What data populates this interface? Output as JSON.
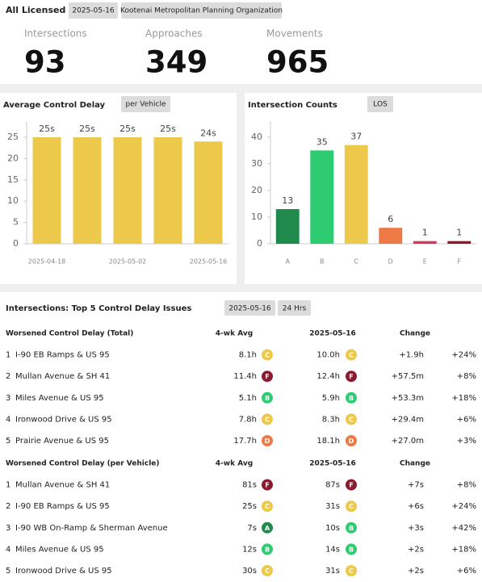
{
  "header": {
    "title": "All Licensed",
    "date": "2025-05-16",
    "agency": "Kootenai Metropolitan Planning Organization"
  },
  "kpis": [
    {
      "label": "Intersections",
      "value": 93
    },
    {
      "label": "Approaches",
      "value": 349
    },
    {
      "label": "Movements",
      "value": 965
    }
  ],
  "chart_data": [
    {
      "type": "bar",
      "title": "Average Control Delay",
      "badge": "per Vehicle",
      "categories": [
        "2025-04-18",
        null,
        "2025-05-02",
        null,
        "2025-05-16"
      ],
      "values": [
        25,
        25,
        25,
        25,
        24
      ],
      "value_labels": [
        "25s",
        "25s",
        "25s",
        "25s",
        "24s"
      ],
      "color": "#ecc94b",
      "ylim": [
        0,
        28.8
      ],
      "yticks": [
        0,
        5,
        10,
        15,
        20,
        25
      ]
    },
    {
      "type": "bar",
      "title": "Intersection Counts",
      "badge": "LOS",
      "categories": [
        "A",
        "B",
        "C",
        "D",
        "E",
        "F"
      ],
      "values": [
        13,
        35,
        37,
        6,
        1,
        1
      ],
      "colors": [
        "#1f8a4c",
        "#2ecc71",
        "#ecc94b",
        "#ed7a45",
        "#d8385b",
        "#8b1c2f"
      ],
      "ylim": [
        0,
        46
      ],
      "yticks": [
        0,
        10,
        20,
        30,
        40
      ]
    }
  ],
  "table": {
    "title": "Intersections: Top 5 Control Delay Issues",
    "badges": [
      "2025-05-16",
      "24 Hrs"
    ],
    "sections": [
      {
        "title": "Worsened Control Delay (Total)",
        "columns": [
          "4-wk Avg",
          "2025-05-16",
          "Change"
        ],
        "rows": [
          {
            "rank": 1,
            "name": "I-90 EB Ramps & US 95",
            "avg": "8.1h",
            "avg_los": "C",
            "current": "10.0h",
            "current_los": "C",
            "change": "+1.9h",
            "pct": "+24%"
          },
          {
            "rank": 2,
            "name": "Mullan Avenue & SH 41",
            "avg": "11.4h",
            "avg_los": "F",
            "current": "12.4h",
            "current_los": "F",
            "change": "+57.5m",
            "pct": "+8%"
          },
          {
            "rank": 3,
            "name": "Miles Avenue & US 95",
            "avg": "5.1h",
            "avg_los": "B",
            "current": "5.9h",
            "current_los": "B",
            "change": "+53.3m",
            "pct": "+18%"
          },
          {
            "rank": 4,
            "name": "Ironwood Drive & US 95",
            "avg": "7.8h",
            "avg_los": "C",
            "current": "8.3h",
            "current_los": "C",
            "change": "+29.4m",
            "pct": "+6%"
          },
          {
            "rank": 5,
            "name": "Prairie Avenue & US 95",
            "avg": "17.7h",
            "avg_los": "D",
            "current": "18.1h",
            "current_los": "D",
            "change": "+27.0m",
            "pct": "+3%"
          }
        ]
      },
      {
        "title": "Worsened Control Delay (per Vehicle)",
        "columns": [
          "4-wk Avg",
          "2025-05-16",
          "Change"
        ],
        "rows": [
          {
            "rank": 1,
            "name": "Mullan Avenue & SH 41",
            "avg": "81s",
            "avg_los": "F",
            "current": "87s",
            "current_los": "F",
            "change": "+7s",
            "pct": "+8%"
          },
          {
            "rank": 2,
            "name": "I-90 EB Ramps & US 95",
            "avg": "25s",
            "avg_los": "C",
            "current": "31s",
            "current_los": "C",
            "change": "+6s",
            "pct": "+24%"
          },
          {
            "rank": 3,
            "name": "I-90 WB On-Ramp & Sherman Avenue",
            "avg": "7s",
            "avg_los": "A",
            "current": "10s",
            "current_los": "B",
            "change": "+3s",
            "pct": "+42%"
          },
          {
            "rank": 4,
            "name": "Miles Avenue & US 95",
            "avg": "12s",
            "avg_los": "B",
            "current": "14s",
            "current_los": "B",
            "change": "+2s",
            "pct": "+18%"
          },
          {
            "rank": 5,
            "name": "Ironwood Drive & US 95",
            "avg": "30s",
            "avg_los": "C",
            "current": "31s",
            "current_los": "C",
            "change": "+2s",
            "pct": "+6%"
          }
        ]
      }
    ]
  },
  "los_colors": {
    "A": "#1f8a4c",
    "B": "#2ecc71",
    "C": "#ecc94b",
    "D": "#ed7a45",
    "E": "#d8385b",
    "F": "#8b1c2f"
  }
}
